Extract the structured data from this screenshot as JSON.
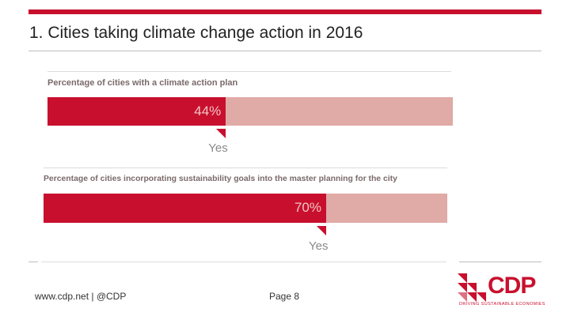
{
  "slide": {
    "title": "1. Cities taking climate change action in 2016",
    "footer_link": "www.cdp.net | @CDP",
    "page": "Page 8"
  },
  "logo": {
    "text": "CDP",
    "tagline": "DRIVING SUSTAINABLE ECONOMIES"
  },
  "colors": {
    "accent": "#c8102e",
    "bar_remainder": "#e0aaa6"
  },
  "chart_data": [
    {
      "type": "bar",
      "orientation": "horizontal",
      "stacked": true,
      "title": "Percentage of cities with a climate action plan",
      "categories": [
        "Yes"
      ],
      "series": [
        {
          "name": "Yes",
          "values": [
            44
          ]
        }
      ],
      "value_label": "44%",
      "annotation": "Yes",
      "xlim": [
        0,
        100
      ]
    },
    {
      "type": "bar",
      "orientation": "horizontal",
      "stacked": true,
      "title": "Percentage of cities incorporating sustainability goals into the master planning for the city",
      "categories": [
        "Yes"
      ],
      "series": [
        {
          "name": "Yes",
          "values": [
            70
          ]
        }
      ],
      "value_label": "70%",
      "annotation": "Yes",
      "xlim": [
        0,
        100
      ]
    }
  ]
}
